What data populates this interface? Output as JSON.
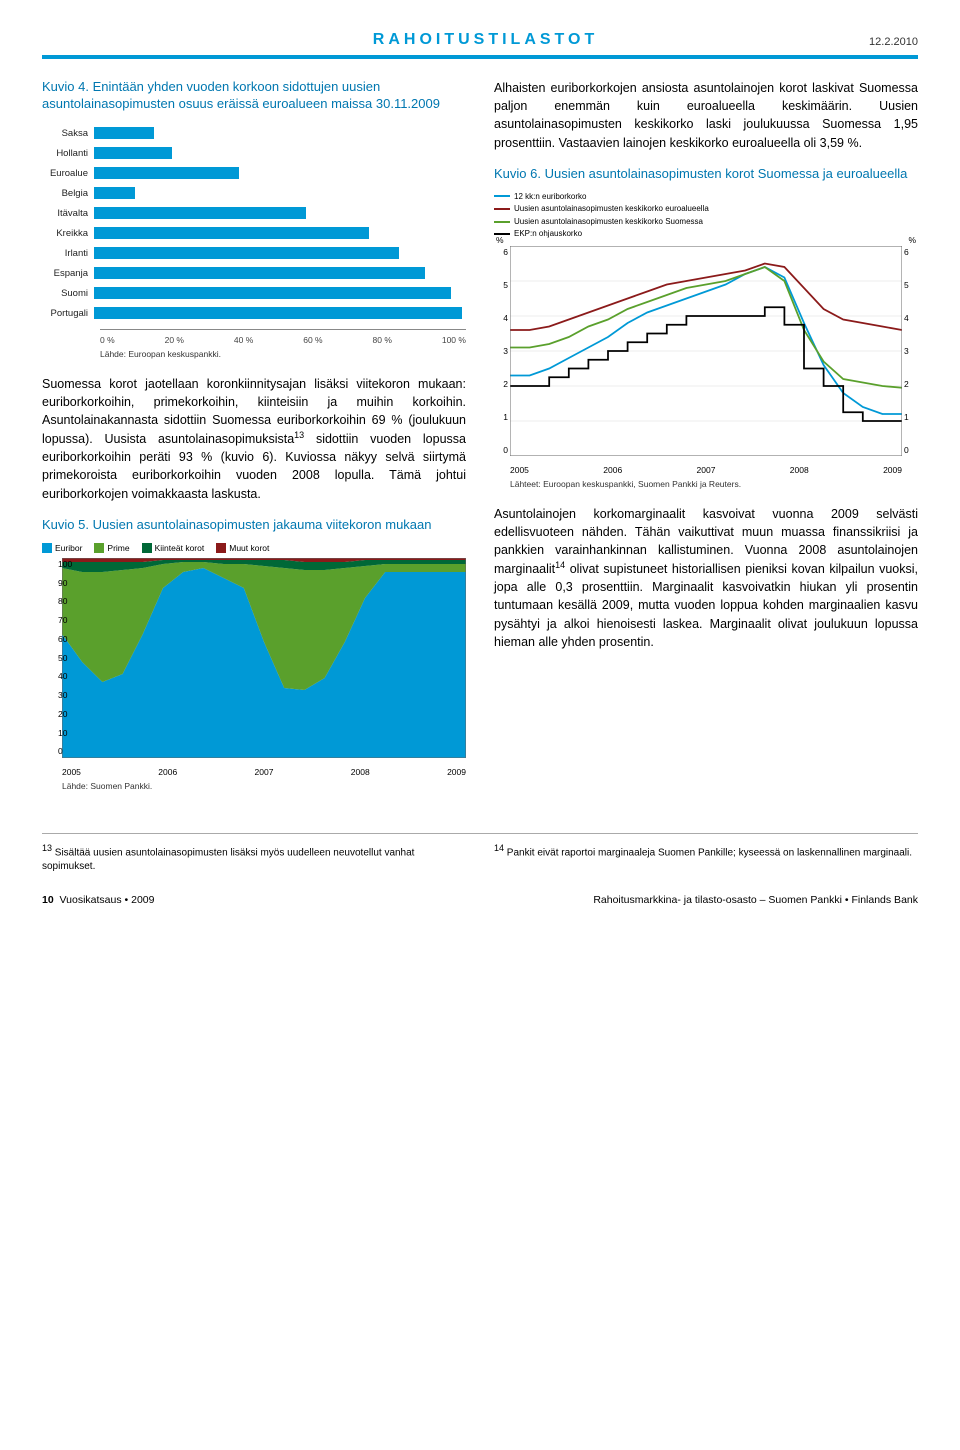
{
  "header": {
    "title": "RAHOITUSTILASTOT",
    "date": "12.2.2010"
  },
  "kuvio4": {
    "title_line1": "Kuvio 4. Enintään yhden vuoden korkoon sidottujen uusien asuntolainasopimusten osuus eräissä euroalueen maissa 30.11.2009",
    "type": "bar-horizontal",
    "countries": [
      "Saksa",
      "Hollanti",
      "Euroalue",
      "Belgia",
      "Itävalta",
      "Kreikka",
      "Irlanti",
      "Espanja",
      "Suomi",
      "Portugali"
    ],
    "values_pct": [
      16,
      21,
      39,
      11,
      57,
      74,
      82,
      89,
      96,
      99
    ],
    "bar_color": "#0099d6",
    "xlim": [
      0,
      100
    ],
    "xticks": [
      "0 %",
      "20 %",
      "40 %",
      "60 %",
      "80 %",
      "100 %"
    ],
    "source": "Lähde: Euroopan keskuspankki."
  },
  "para_left_1": "Suomessa korot jaotellaan koronkiinnitysajan lisäksi viitekoron mukaan: euriborkorkoihin, primekorkoihin, kiinteisiin ja muihin korkoihin. Asuntolainakannasta sidottiin Suomessa euriborkorkoihin 69 % (joulukuun lopussa). Uusista asuntolainasopimuksista",
  "sup13": "13",
  "para_left_1b": " sidottiin vuoden lopussa euriborkorkoihin peräti 93 % (kuvio 6). Kuviossa näkyy selvä siirtymä primekoroista euriborkorkoihin vuoden 2008 lopulla. Tämä johtui euriborkorkojen voimakkaasta laskusta.",
  "kuvio5": {
    "title": "Kuvio 5. Uusien asuntolainasopimusten jakauma viitekoron mukaan",
    "type": "area-stacked",
    "legend": [
      "Euribor",
      "Prime",
      "Kiinteät korot",
      "Muut korot"
    ],
    "legend_colors": [
      "#0099d6",
      "#5aa02c",
      "#006837",
      "#8b1a1a"
    ],
    "x_years": [
      "2005",
      "2006",
      "2007",
      "2008",
      "2009"
    ],
    "ylim": [
      0,
      100
    ],
    "ytick_step": 10,
    "background_color": "#ffffff",
    "euribor_share": [
      62,
      48,
      38,
      42,
      62,
      85,
      93,
      95,
      90,
      85,
      58,
      35,
      34,
      40,
      58,
      80,
      93,
      93,
      93,
      93,
      93
    ],
    "prime_share": [
      33,
      45,
      55,
      52,
      33,
      12,
      5,
      3,
      7,
      12,
      38,
      60,
      60,
      54,
      37,
      16,
      4,
      4,
      4,
      4,
      4
    ],
    "fixed_share": [
      3,
      5,
      5,
      4,
      3,
      2,
      1,
      1,
      2,
      2,
      3,
      4,
      4,
      4,
      3,
      3,
      2,
      2,
      2,
      2,
      2
    ],
    "other_share": [
      2,
      2,
      2,
      2,
      2,
      1,
      1,
      1,
      1,
      1,
      1,
      1,
      2,
      2,
      2,
      1,
      1,
      1,
      1,
      1,
      1
    ],
    "source": "Lähde: Suomen Pankki."
  },
  "para_right_1": "Alhaisten euriborkorkojen ansiosta asuntolainojen korot laskivat Suomessa paljon enemmän kuin euroalueella keskimäärin. Uusien asuntolainasopimusten keskikorko laski joulukuussa Suomessa 1,95 prosenttiin. Vastaavien lainojen keskikorko euroalueella oli 3,59 %.",
  "kuvio6": {
    "title": "Kuvio 6. Uusien asuntolainasopimusten korot Suomessa ja euroalueella",
    "type": "line",
    "legend": [
      {
        "label": "12 kk:n euriborkorko",
        "color": "#0099d6"
      },
      {
        "label": "Uusien asuntolainasopimusten keskikorko euroalueella",
        "color": "#8b1a1a"
      },
      {
        "label": "Uusien asuntolainasopimusten keskikorko Suomessa",
        "color": "#5aa02c"
      },
      {
        "label": "EKP:n ohjauskorko",
        "color": "#000000"
      }
    ],
    "x_years": [
      "2005",
      "2006",
      "2007",
      "2008",
      "2009"
    ],
    "ylim": [
      0,
      6
    ],
    "ytick_step": 1,
    "series_euribor": [
      2.3,
      2.3,
      2.5,
      2.8,
      3.1,
      3.4,
      3.8,
      4.1,
      4.3,
      4.5,
      4.7,
      4.9,
      5.2,
      5.4,
      5.1,
      3.8,
      2.6,
      1.8,
      1.4,
      1.2,
      1.2
    ],
    "series_euroarea": [
      3.6,
      3.6,
      3.7,
      3.9,
      4.1,
      4.3,
      4.5,
      4.7,
      4.9,
      5.0,
      5.1,
      5.2,
      5.3,
      5.5,
      5.4,
      4.8,
      4.2,
      3.9,
      3.8,
      3.7,
      3.6
    ],
    "series_finland": [
      3.1,
      3.1,
      3.2,
      3.4,
      3.7,
      3.9,
      4.2,
      4.4,
      4.6,
      4.8,
      4.9,
      5.0,
      5.2,
      5.4,
      5.0,
      3.6,
      2.7,
      2.2,
      2.1,
      2.0,
      1.95
    ],
    "series_ecb": [
      2.0,
      2.0,
      2.25,
      2.5,
      2.75,
      3.0,
      3.25,
      3.5,
      3.75,
      4.0,
      4.0,
      4.0,
      4.0,
      4.25,
      3.75,
      2.5,
      2.0,
      1.25,
      1.0,
      1.0,
      1.0
    ],
    "source": "Lähteet: Euroopan keskuspankki, Suomen Pankki ja Reuters."
  },
  "para_right_2a": "Asuntolainojen korkomarginaalit kasvoivat vuonna 2009 selvästi edellisvuoteen nähden. Tähän vaikuttivat muun muassa finanssikriisi ja pankkien varainhankinnan kallistuminen. Vuonna 2008 asuntolainojen marginaalit",
  "sup14": "14",
  "para_right_2b": " olivat supistuneet historiallisen pieniksi kovan kilpailun vuoksi, jopa alle 0,3 prosenttiin. Marginaalit kasvoivatkin hiukan yli prosentin tuntumaan kesällä 2009, mutta vuoden loppua kohden marginaalien kasvu pysähtyi ja alkoi hienoisesti laskea. Marginaalit olivat joulukuun lopussa hieman alle yhden prosentin.",
  "footnote13": " Sisältää uusien asuntolainasopimusten lisäksi myös uudelleen neuvotellut vanhat sopimukset.",
  "footnote14": " Pankit eivät raportoi marginaaleja Suomen Pankille; kyseessä on laskennallinen marginaali.",
  "footer": {
    "page_no": "10",
    "left": "Vuosikatsaus • 2009",
    "right": "Rahoitusmarkkina- ja tilasto-osasto – Suomen Pankki • Finlands Bank"
  }
}
